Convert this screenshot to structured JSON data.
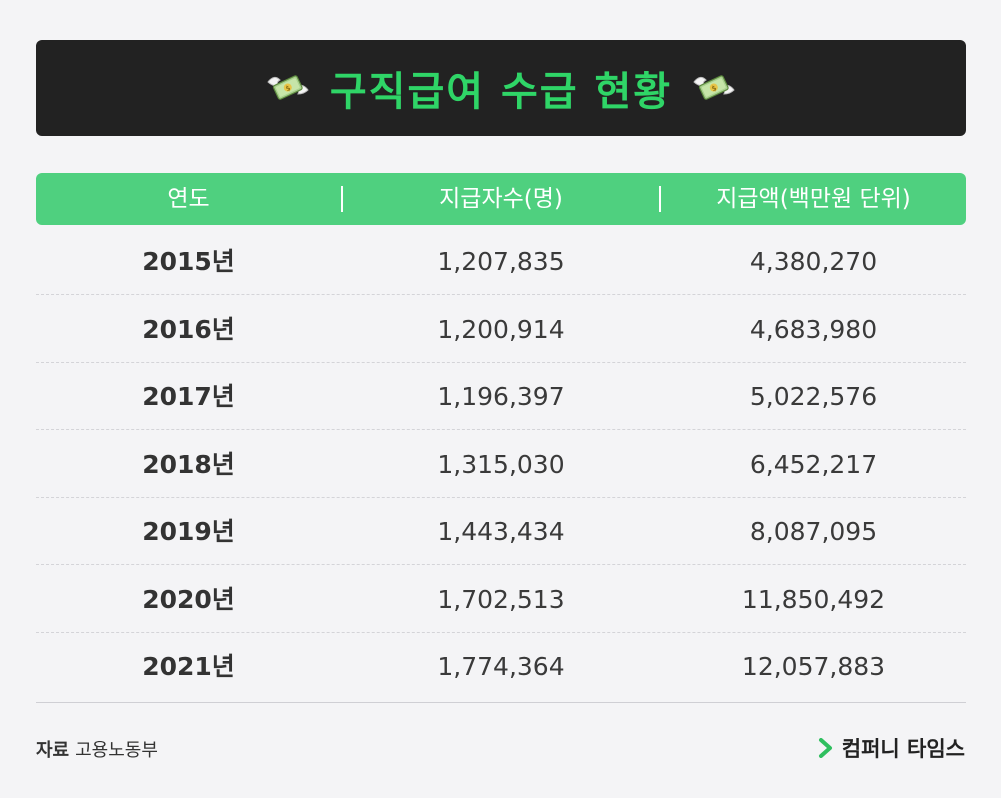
{
  "title": "구직급여 수급 현황",
  "icon_left": "flying-money-icon",
  "icon_right": "flying-money-icon",
  "colors": {
    "title_bar": "#222222",
    "title_text": "#2fd567",
    "header": "#4fd07f",
    "brand_accent": "#2fbf5f"
  },
  "chart_data": {
    "type": "table",
    "title": "구직급여 수급 현황",
    "columns": [
      "연도",
      "지급자수(명)",
      "지급액(백만원 단위)"
    ],
    "rows": [
      [
        "2015년",
        "1,207,835",
        "4,380,270"
      ],
      [
        "2016년",
        "1,200,914",
        "4,683,980"
      ],
      [
        "2017년",
        "1,196,397",
        "5,022,576"
      ],
      [
        "2018년",
        "1,315,030",
        "6,452,217"
      ],
      [
        "2019년",
        "1,443,434",
        "8,087,095"
      ],
      [
        "2020년",
        "1,702,513",
        "11,850,492"
      ],
      [
        "2021년",
        "1,774,364",
        "12,057,883"
      ]
    ]
  },
  "source": {
    "label": "자료",
    "value": "고용노동부"
  },
  "brand": {
    "name": "컴퍼니 타임스",
    "icon": "chevron-right-icon"
  }
}
